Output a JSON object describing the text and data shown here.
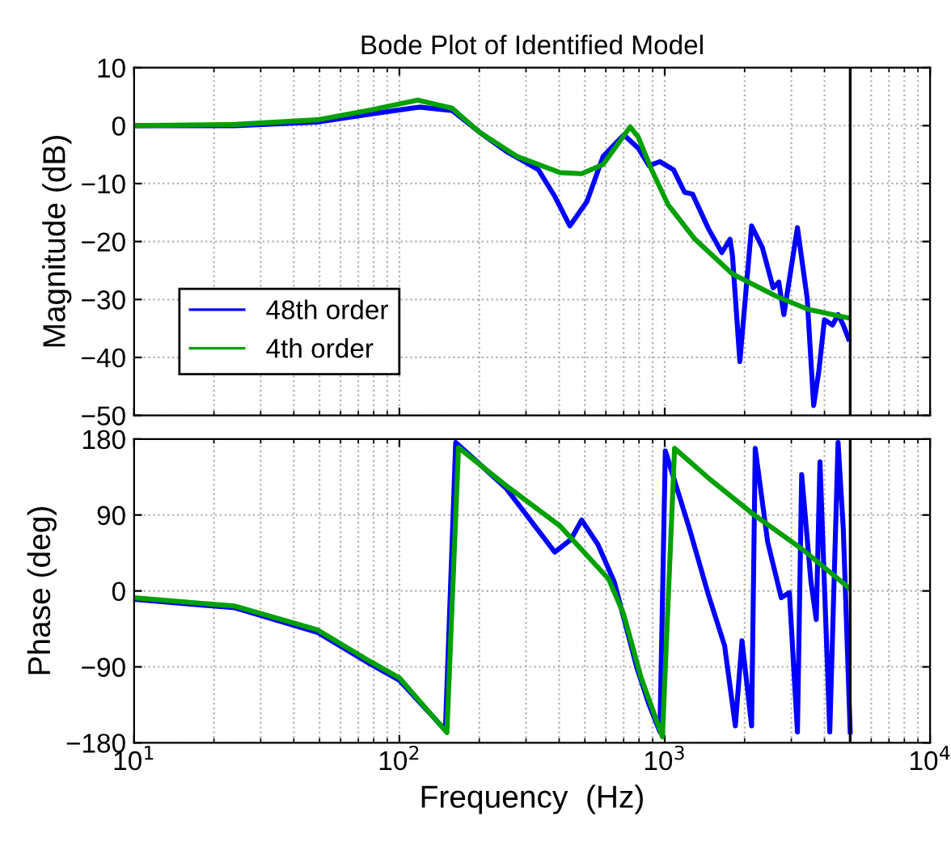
{
  "chart_data": [
    {
      "type": "line",
      "title": "Bode Plot of Identified Model",
      "ylabel": "Magnitude (dB)",
      "log": "x",
      "grid": true,
      "legend": "bottom left",
      "tick_labels": "y",
      "line_style": "solid",
      "xlim": [
        10,
        10000
      ],
      "xticks": [
        {
          "value": 10,
          "label": null
        },
        {
          "value": 100,
          "label": null
        },
        {
          "value": 1000,
          "label": null
        },
        {
          "value": 10000,
          "label": null
        }
      ],
      "ylim": [
        -50,
        10
      ],
      "yticks": [
        {
          "value": -50,
          "label": "−50"
        },
        {
          "value": -40,
          "label": "−40"
        },
        {
          "value": -30,
          "label": "−30"
        },
        {
          "value": -20,
          "label": "−20"
        },
        {
          "value": -10,
          "label": "−10"
        },
        0,
        10
      ],
      "ref_lines": [
        {
          "axis": "x",
          "value": 5000,
          "color": "#000000"
        }
      ],
      "series": [
        {
          "name": "48th order",
          "color": "#0000ff",
          "x": [
            10,
            24,
            49,
            78,
            119,
            158,
            200,
            252,
            334,
            385,
            439,
            509,
            586,
            701,
            795,
            873,
            959,
            1079,
            1188,
            1272,
            1462,
            1641,
            1762,
            1800,
            1919,
            2125,
            2332,
            2562,
            2690,
            2812,
            3163,
            3442,
            3641,
            3810,
            3997,
            4289,
            4500,
            4708,
            4930
          ],
          "values": [
            0,
            0,
            0.6,
            2,
            3.2,
            2.6,
            -1.1,
            -4.4,
            -7.6,
            -12.2,
            -17.3,
            -13.1,
            -5.3,
            -1.6,
            -3.9,
            -6.9,
            -6.2,
            -7.6,
            -11.5,
            -11.8,
            -17.8,
            -21.9,
            -19.6,
            -22.5,
            -40.7,
            -17.3,
            -21,
            -28,
            -27,
            -32.6,
            -17.6,
            -29.8,
            -48.3,
            -42.3,
            -33.5,
            -34.4,
            -32.6,
            -34.4,
            -36.8
          ]
        },
        {
          "name": "4th order",
          "color": "#00a000",
          "x": [
            10,
            24,
            49,
            78,
            117,
            158,
            200,
            277,
            403,
            486,
            586,
            741,
            795,
            892,
            1028,
            1300,
            1800,
            2623,
            3470,
            4930
          ],
          "values": [
            0,
            0.2,
            1,
            2.7,
            4.4,
            3,
            -1.1,
            -5.3,
            -8.1,
            -8.3,
            -6.7,
            -0.2,
            -2,
            -7.6,
            -13.6,
            -19.6,
            -25.6,
            -29.4,
            -31.7,
            -33.2
          ]
        }
      ]
    },
    {
      "type": "line",
      "xlabel": "Frequency  (Hz)",
      "ylabel": "Phase (deg)",
      "log": "x",
      "grid": true,
      "line_style": "solid",
      "xlim": [
        10,
        10000
      ],
      "xticks": [
        {
          "value": 10,
          "label": "10$^{1}$"
        },
        {
          "value": 100,
          "label": "10$^{2}$"
        },
        {
          "value": 1000,
          "label": "10$^{3}$"
        },
        {
          "value": 10000,
          "label": "10$^{4}$"
        }
      ],
      "ylim": [
        -180,
        180
      ],
      "yticks": [
        {
          "value": -180,
          "label": "−180"
        },
        {
          "value": -90,
          "label": "−90"
        },
        0,
        90,
        180
      ],
      "ref_lines": [
        {
          "axis": "x",
          "value": 5000,
          "color": "#000000"
        }
      ],
      "series": [
        {
          "color": "#0000ff",
          "x": [
            10,
            24,
            49,
            78,
            100,
            149,
            163,
            252,
            385,
            443,
            486,
            560,
            645,
            785,
            873,
            959,
            1005,
            1238,
            1462,
            1681,
            1845,
            1955,
            2125,
            2193,
            2443,
            2748,
            2950,
            3163,
            3281,
            3556,
            3724,
            3846,
            4188,
            4500,
            4708,
            4999
          ],
          "values": [
            -10,
            -20,
            -49,
            -87,
            -106,
            -165,
            176,
            122,
            46,
            61,
            84,
            55,
            11,
            -91,
            -135,
            -167,
            166,
            74,
            -5,
            -65,
            -160,
            -59,
            -160,
            169,
            58,
            -8,
            -2,
            -167,
            138,
            11,
            -34,
            153,
            -167,
            176,
            74,
            -167
          ]
        },
        {
          "color": "#00a000",
          "x": [
            10,
            24,
            49,
            78,
            100,
            151,
            167,
            252,
            403,
            615,
            699,
            815,
            980,
            1089,
            1497,
            2174,
            3311,
            4930
          ],
          "values": [
            -8,
            -18,
            -46,
            -84,
            -103,
            -168,
            170,
            125,
            77,
            14,
            -27,
            -103,
            -173,
            169,
            131,
            90,
            49,
            4
          ]
        }
      ]
    }
  ]
}
